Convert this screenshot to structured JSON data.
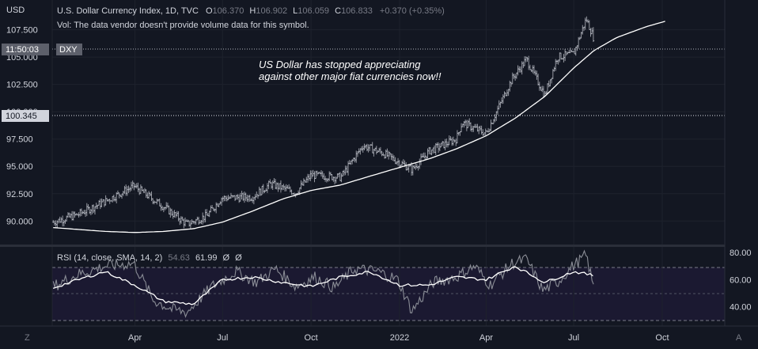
{
  "header": {
    "currency": "USD",
    "symbol_title": "U.S. Dollar Currency Index, 1D, TVC",
    "open_label": "O",
    "open": "106.370",
    "high_label": "H",
    "high": "106.902",
    "low_label": "L",
    "low": "106.059",
    "close_label": "C",
    "close": "106.833",
    "change": "+0.370 (+0.35%)",
    "vol_note": "Vol: The data vendor doesn't provide volume data for this symbol."
  },
  "badges": {
    "time": "11:50:03",
    "symbol": "DXY",
    "crosshair_price": "100.345"
  },
  "annotation": {
    "line1": "US Dollar has stopped appreciating",
    "line2": "against other major fiat currencies now!!"
  },
  "rsi_legend": {
    "title": "RSI (14, close, SMA, 14, 2)",
    "v1": "54.63",
    "v2": "61.99",
    "v3": "Ø",
    "v4": "Ø"
  },
  "footer": {
    "left": "Z",
    "right": "A"
  },
  "colors": {
    "background": "#131722",
    "candle": "#b2b5be",
    "sma": "#ffffff",
    "rsi_line": "#9598a1",
    "rsi_ma": "#ffffff",
    "grid": "#1e222d"
  },
  "chart_data": [
    {
      "type": "line",
      "title": "U.S. Dollar Currency Index, 1D, TVC",
      "y_ticks": [
        "107.500",
        "105.000",
        "102.500",
        "100.000",
        "97.500",
        "95.000",
        "92.500",
        "90.000"
      ],
      "ylim": [
        88.5,
        109.5
      ],
      "x_ticks": [
        "Apr",
        "Jul",
        "Oct",
        "2022",
        "Apr",
        "Jul",
        "Oct"
      ],
      "x_tick_dates": [
        "2021-04-01",
        "2021-07-01",
        "2021-10-01",
        "2022-01-01",
        "2022-04-01",
        "2022-07-01",
        "2022-10-01"
      ],
      "xlim": [
        "2021-01-05",
        "2022-12-05"
      ],
      "series": [
        {
          "kind": "price",
          "x": [
            "2021-01-06",
            "2021-02-01",
            "2021-03-01",
            "2021-03-31",
            "2021-05-01",
            "2021-05-25",
            "2021-06-15",
            "2021-06-30",
            "2021-08-01",
            "2021-08-20",
            "2021-09-15",
            "2021-10-01",
            "2021-11-01",
            "2021-11-24",
            "2021-12-15",
            "2022-01-14",
            "2022-02-01",
            "2022-03-01",
            "2022-03-07",
            "2022-04-01",
            "2022-04-28",
            "2022-05-13",
            "2022-06-01",
            "2022-06-14",
            "2022-07-01",
            "2022-07-14",
            "2022-07-22"
          ],
          "values": [
            89.9,
            90.6,
            91.8,
            93.2,
            91.3,
            89.7,
            90.5,
            92.1,
            92.2,
            93.4,
            92.6,
            94.2,
            94.0,
            96.9,
            96.2,
            94.7,
            96.4,
            97.5,
            99.0,
            98.0,
            103.0,
            104.8,
            101.5,
            105.0,
            105.3,
            108.5,
            106.7
          ]
        },
        {
          "kind": "moving-average",
          "x": [
            "2021-01-06",
            "2021-03-01",
            "2021-04-01",
            "2021-05-01",
            "2021-06-01",
            "2021-07-01",
            "2021-08-01",
            "2021-09-01",
            "2021-10-01",
            "2021-11-01",
            "2021-12-01",
            "2022-01-01",
            "2022-02-01",
            "2022-03-01",
            "2022-04-01",
            "2022-05-01",
            "2022-06-01",
            "2022-07-01",
            "2022-07-22",
            "2022-08-15",
            "2022-09-15",
            "2022-10-05"
          ],
          "values": [
            89.4,
            89.05,
            88.95,
            89.05,
            89.3,
            89.9,
            90.9,
            92.0,
            92.8,
            93.3,
            94.1,
            94.9,
            95.7,
            96.6,
            97.8,
            99.4,
            101.4,
            104.0,
            105.6,
            106.8,
            107.8,
            108.3
          ]
        }
      ]
    },
    {
      "type": "line",
      "title": "RSI (14, close, SMA, 14, 2)",
      "y_ticks": [
        "80.00",
        "60.00",
        "40.00"
      ],
      "ylim": [
        27,
        83
      ],
      "bands": [
        30,
        50,
        70
      ],
      "series": [
        {
          "kind": "rsi",
          "x": [
            "2021-01-06",
            "2021-02-01",
            "2021-03-01",
            "2021-03-31",
            "2021-04-20",
            "2021-05-10",
            "2021-05-25",
            "2021-06-20",
            "2021-07-15",
            "2021-08-05",
            "2021-08-25",
            "2021-09-15",
            "2021-10-05",
            "2021-10-25",
            "2021-11-15",
            "2021-12-10",
            "2021-12-30",
            "2022-01-14",
            "2022-02-05",
            "2022-03-01",
            "2022-03-20",
            "2022-04-05",
            "2022-04-28",
            "2022-05-13",
            "2022-05-30",
            "2022-06-14",
            "2022-06-30",
            "2022-07-14",
            "2022-07-22"
          ],
          "values": [
            55,
            64,
            70,
            72,
            45,
            38,
            36,
            55,
            66,
            58,
            68,
            55,
            62,
            54,
            68,
            66,
            60,
            37,
            58,
            62,
            70,
            56,
            72,
            75,
            52,
            58,
            70,
            78,
            53
          ]
        },
        {
          "kind": "rsi-ma",
          "x": [
            "2021-01-06",
            "2021-02-01",
            "2021-03-01",
            "2021-04-01",
            "2021-05-01",
            "2021-06-01",
            "2021-07-01",
            "2021-08-01",
            "2021-09-01",
            "2021-10-01",
            "2021-11-01",
            "2021-12-01",
            "2022-01-01",
            "2022-02-01",
            "2022-03-01",
            "2022-04-01",
            "2022-05-01",
            "2022-06-01",
            "2022-07-01",
            "2022-07-22"
          ],
          "values": [
            54,
            60,
            66,
            56,
            44,
            42,
            60,
            62,
            58,
            55,
            62,
            66,
            56,
            56,
            62,
            60,
            70,
            58,
            66,
            63
          ]
        }
      ]
    }
  ]
}
